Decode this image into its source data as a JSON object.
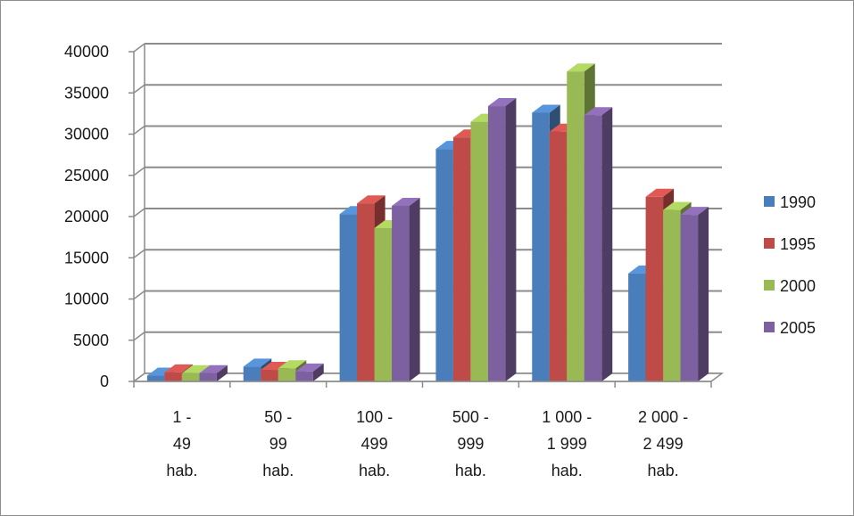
{
  "chart_data": {
    "type": "bar",
    "style": "3d-clustered-column",
    "categories": [
      [
        "1 -",
        "49",
        "hab."
      ],
      [
        "50 -",
        "99",
        "hab."
      ],
      [
        "100 -",
        "499",
        "hab."
      ],
      [
        "500 -",
        "999",
        "hab."
      ],
      [
        "1 000 -",
        "1 999",
        "hab."
      ],
      [
        "2 000 -",
        "2 499",
        "hab."
      ]
    ],
    "series": [
      {
        "name": "1990",
        "color": "#4a7ebb",
        "values": [
          700,
          1800,
          20300,
          28200,
          32600,
          13100
        ]
      },
      {
        "name": "1995",
        "color": "#be4b48",
        "values": [
          1100,
          1400,
          21600,
          29600,
          30300,
          22400
        ]
      },
      {
        "name": "2000",
        "color": "#98b954",
        "values": [
          1000,
          1600,
          18600,
          31500,
          37600,
          20800
        ]
      },
      {
        "name": "2005",
        "color": "#7d60a0",
        "values": [
          1000,
          1200,
          21300,
          33400,
          32300,
          20200
        ]
      }
    ],
    "ylim": [
      0,
      40000
    ],
    "yticks": [
      0,
      5000,
      10000,
      15000,
      20000,
      25000,
      30000,
      35000,
      40000
    ],
    "ytick_labels": [
      "0",
      "5000",
      "10000",
      "15000",
      "20000",
      "25000",
      "30000",
      "35000",
      "40000"
    ],
    "grid": true,
    "legend_position": "right",
    "title": "",
    "xlabel": "",
    "ylabel": ""
  }
}
